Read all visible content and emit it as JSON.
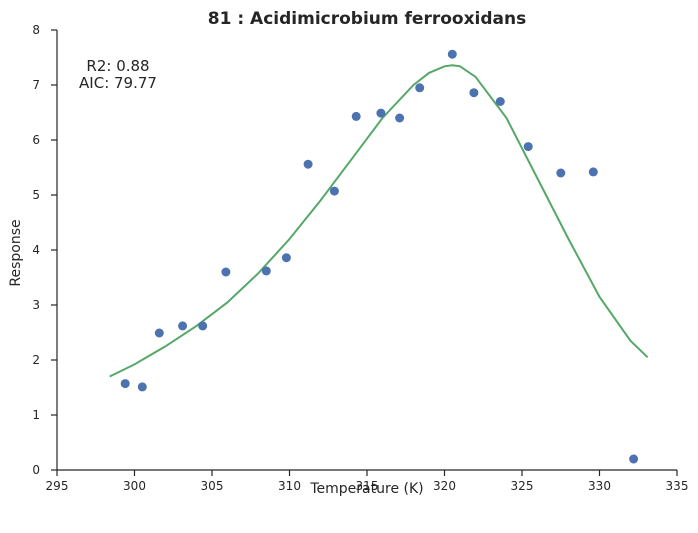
{
  "chart_data": {
    "type": "scatter",
    "title": "81 : Acidimicrobium ferrooxidans",
    "xlabel": "Temperature (K)",
    "ylabel": "Response",
    "xlim": [
      295,
      335
    ],
    "ylim": [
      0,
      8
    ],
    "xticks": [
      295,
      300,
      305,
      310,
      315,
      320,
      325,
      330,
      335
    ],
    "yticks": [
      0,
      1,
      2,
      3,
      4,
      5,
      6,
      7,
      8
    ],
    "grid": false,
    "annotations": [
      "R2: 0.88",
      "AIC: 79.77"
    ],
    "colors": {
      "points": "#4c72b0",
      "fit": "#55a868",
      "axis": "#262626"
    },
    "series": [
      {
        "kind": "scatter",
        "x": [
          299.4,
          300.5,
          301.6,
          303.1,
          304.4,
          305.9,
          308.5,
          309.8,
          311.2,
          312.9,
          314.3,
          315.9,
          317.1,
          318.4,
          320.5,
          321.9,
          323.6,
          325.4,
          327.5,
          329.6,
          332.2
        ],
        "y": [
          1.57,
          1.51,
          2.49,
          2.62,
          2.62,
          3.6,
          3.62,
          3.86,
          5.56,
          5.07,
          6.43,
          6.49,
          6.4,
          6.95,
          7.56,
          6.86,
          6.7,
          5.88,
          5.4,
          5.42,
          0.2
        ]
      },
      {
        "kind": "line",
        "x": [
          298.4,
          300,
          302,
          304,
          306,
          308,
          310,
          312,
          314,
          316,
          318,
          319,
          320,
          320.5,
          321,
          322,
          324,
          326,
          328,
          330,
          332,
          333.1
        ],
        "y": [
          1.7,
          1.92,
          2.25,
          2.62,
          3.05,
          3.58,
          4.2,
          4.9,
          5.65,
          6.4,
          7.0,
          7.22,
          7.34,
          7.36,
          7.34,
          7.15,
          6.4,
          5.3,
          4.2,
          3.15,
          2.35,
          2.05
        ]
      }
    ]
  }
}
